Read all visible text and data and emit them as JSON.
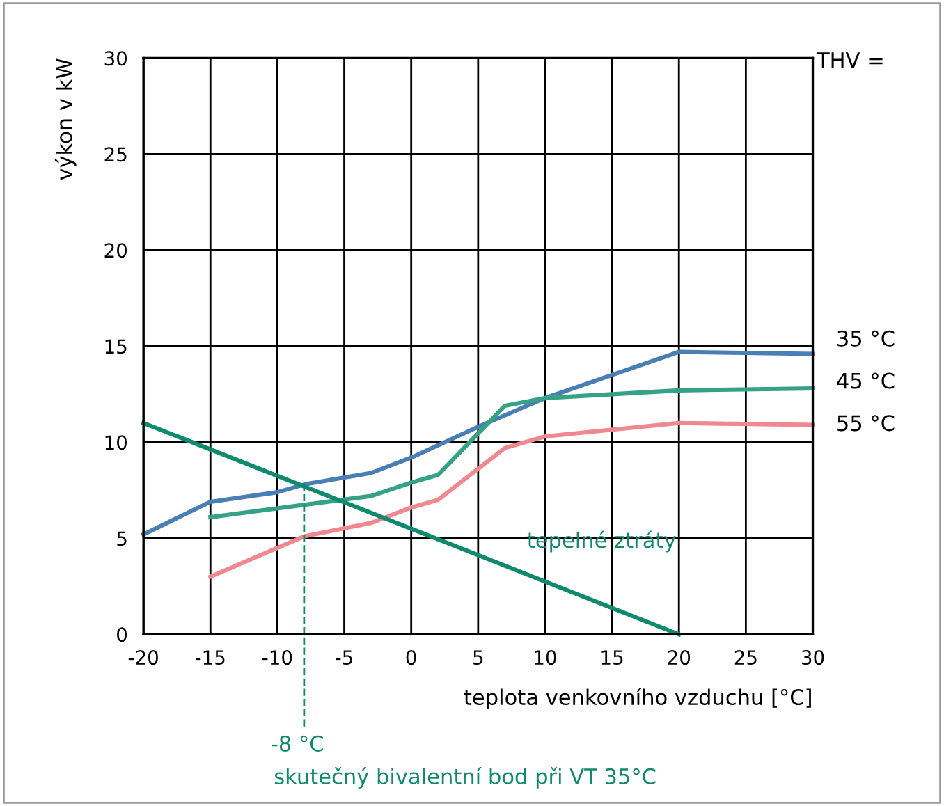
{
  "chart_data": {
    "type": "line",
    "xlabel": "teplota venkovního vzduchu [°C]",
    "ylabel": "výkon v kW",
    "xlim": [
      -20,
      30
    ],
    "xticks": [
      -20,
      -15,
      -10,
      -5,
      0,
      5,
      10,
      15,
      20,
      25,
      30
    ],
    "ylim": [
      0,
      30
    ],
    "yticks": [
      0,
      5,
      10,
      15,
      20,
      25,
      30
    ],
    "grid": true,
    "legend": false,
    "marker": "none",
    "line_style": "solid",
    "series": [
      {
        "name": "35 °C",
        "color": "#4a7fb5",
        "x": [
          -20,
          -15,
          -10,
          -8,
          -3,
          0,
          5,
          10,
          20,
          30
        ],
        "values": [
          5.2,
          6.9,
          7.4,
          7.8,
          8.4,
          9.2,
          10.8,
          12.3,
          14.7,
          14.6
        ]
      },
      {
        "name": "45 °C",
        "color": "#35a287",
        "x": [
          -15,
          -3,
          0,
          2,
          7,
          10,
          20,
          30
        ],
        "values": [
          6.1,
          7.2,
          7.9,
          8.3,
          11.9,
          12.3,
          12.7,
          12.8
        ]
      },
      {
        "name": "55 °C",
        "color": "#f0888f",
        "x": [
          -15,
          -8,
          -3,
          0,
          2,
          7,
          10,
          20,
          30
        ],
        "values": [
          3.0,
          5.1,
          5.8,
          6.6,
          7.0,
          9.7,
          10.3,
          11.0,
          10.9
        ]
      },
      {
        "name": "tepelné ztráty",
        "color": "#108a6e",
        "x": [
          -20,
          20
        ],
        "values": [
          11.0,
          0
        ]
      }
    ],
    "ref_lines": [
      {
        "axis": "x",
        "value": -8,
        "label": "-8 °C",
        "color": "#108a6e",
        "line_style": "dashed"
      }
    ],
    "annotations": [
      "THV =",
      "skutečný bivalentní bod při VT 35°C"
    ]
  }
}
